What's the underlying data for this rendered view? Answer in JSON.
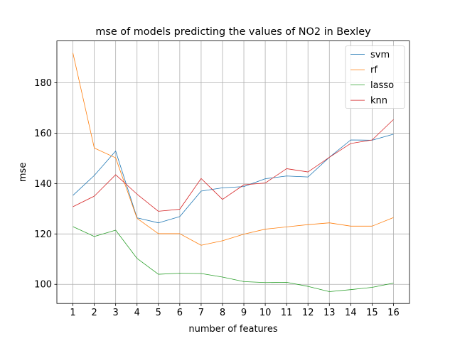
{
  "chart_data": {
    "type": "line",
    "title": "mse of models predicting the values of NO2 in Bexley",
    "xlabel": "number of features",
    "ylabel": "mse",
    "x": [
      1,
      2,
      3,
      4,
      5,
      6,
      7,
      8,
      9,
      10,
      11,
      12,
      13,
      14,
      15,
      16
    ],
    "xlim": [
      0.25,
      16.75
    ],
    "ylim": [
      92.4,
      196.6
    ],
    "yticks": [
      100,
      120,
      140,
      160,
      180
    ],
    "grid": true,
    "legend_position": "top-right",
    "series": [
      {
        "name": "svm",
        "color": "#1f77b4",
        "values": [
          135.3,
          143.2,
          152.9,
          126.4,
          124.4,
          126.9,
          137.0,
          138.3,
          138.8,
          141.9,
          143.0,
          142.6,
          150.4,
          157.3,
          157.2,
          159.6
        ]
      },
      {
        "name": "rf",
        "color": "#ff7f0e",
        "values": [
          191.8,
          154.1,
          150.2,
          126.2,
          120.1,
          120.1,
          115.5,
          117.3,
          119.9,
          121.9,
          122.8,
          123.7,
          124.4,
          123.1,
          123.1,
          126.5
        ]
      },
      {
        "name": "lasso",
        "color": "#2ca02c",
        "values": [
          122.9,
          119.0,
          121.5,
          110.3,
          104.0,
          104.4,
          104.3,
          102.9,
          101.1,
          100.7,
          100.8,
          99.2,
          97.1,
          97.9,
          98.8,
          100.5
        ]
      },
      {
        "name": "knn",
        "color": "#d62728",
        "values": [
          130.8,
          135.0,
          143.5,
          135.8,
          129.0,
          129.8,
          142.0,
          133.7,
          139.5,
          140.2,
          145.9,
          144.6,
          150.4,
          155.9,
          157.3,
          165.4
        ]
      }
    ]
  }
}
